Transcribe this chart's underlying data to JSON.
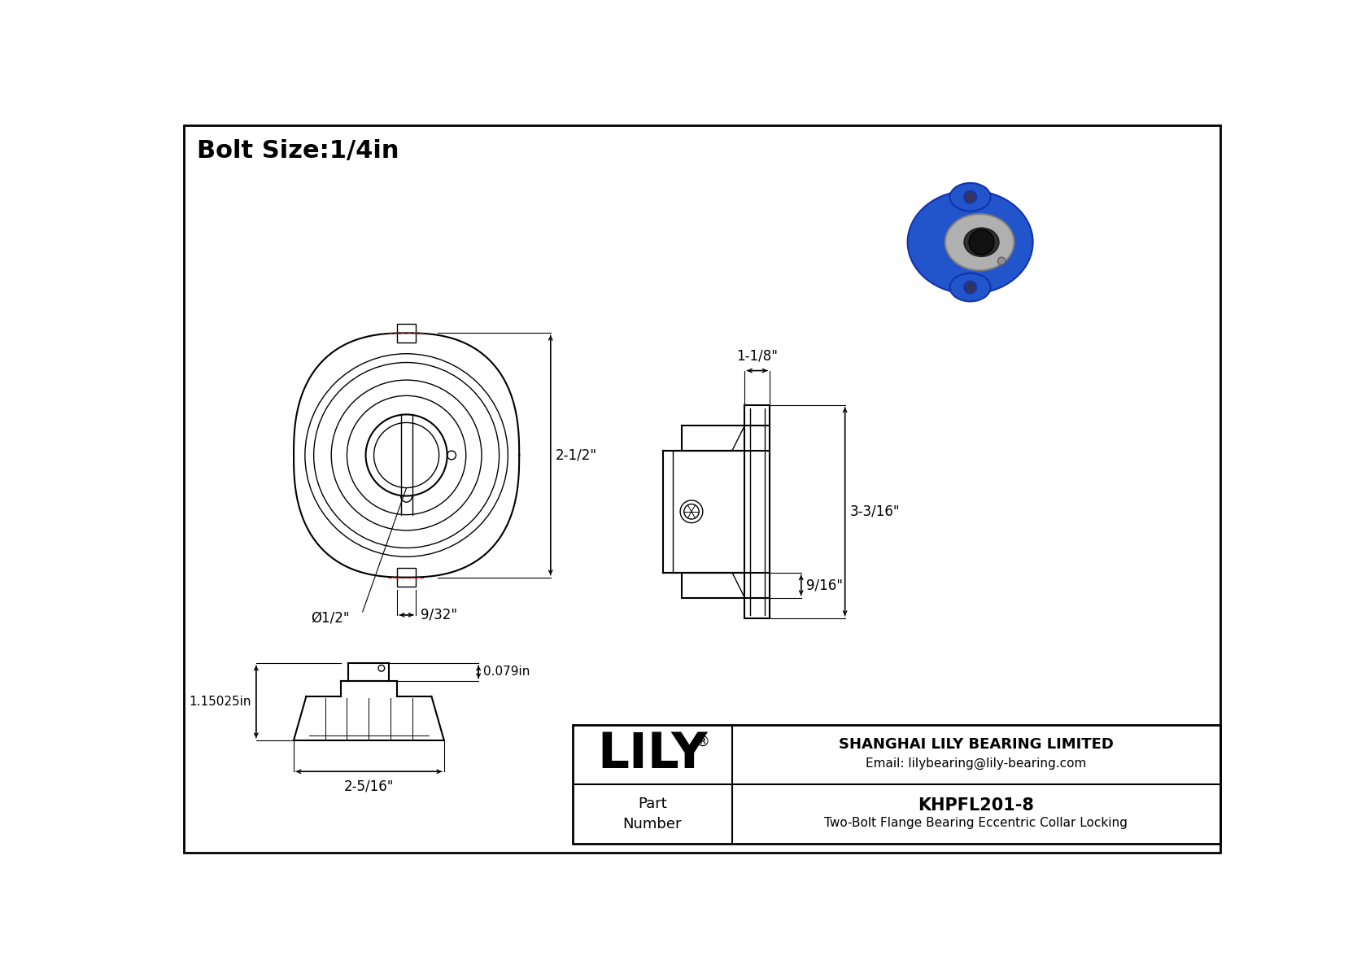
{
  "bg_color": "#f2f2f2",
  "border_color": "#000000",
  "title_text": "Bolt Size:1/4in",
  "title_fontsize": 22,
  "company_name": "SHANGHAI LILY BEARING LIMITED",
  "company_email": "Email: lilybearing@lily-bearing.com",
  "part_number": "KHPFL201-8",
  "part_description": "Two-Bolt Flange Bearing Eccentric Collar Locking",
  "lily_text": "LILY",
  "lily_reg": "®",
  "dim_front_height": "2-1/2\"",
  "dim_front_width": "9/32\"",
  "dim_front_bore": "Ø1/2\"",
  "dim_side_top": "1-1/8\"",
  "dim_side_height": "3-3/16\"",
  "dim_side_bottom": "9/16\"",
  "dim_bottom_height": "1.15025in",
  "dim_bottom_lip": "0.079in",
  "dim_bottom_width": "2-5/16\""
}
